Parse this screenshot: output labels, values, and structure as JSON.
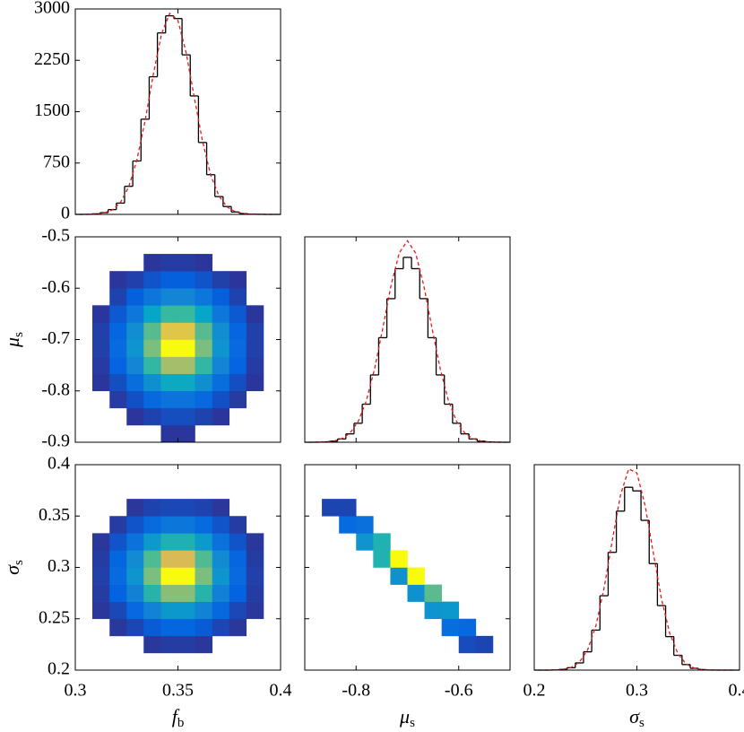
{
  "chart_data": [
    {
      "type": "histogram",
      "color": "#000000",
      "fit_color": "#e41a1c",
      "bins": [
        0.3,
        0.304,
        0.308,
        0.312,
        0.316,
        0.32,
        0.324,
        0.328,
        0.332,
        0.336,
        0.34,
        0.344,
        0.348,
        0.352,
        0.356,
        0.36,
        0.364,
        0.368,
        0.372,
        0.376,
        0.38,
        0.384,
        0.388,
        0.392,
        0.396,
        0.4
      ],
      "values": [
        0,
        1,
        8,
        25,
        70,
        165,
        410,
        780,
        1390,
        2010,
        2650,
        2900,
        2860,
        2330,
        1730,
        1050,
        580,
        260,
        115,
        35,
        12,
        3,
        1,
        0,
        0
      ],
      "fit": [
        0,
        1,
        6,
        21,
        65,
        174,
        400,
        796,
        1366,
        2044,
        2635,
        2937,
        2832,
        2362,
        1704,
        1064,
        571,
        268,
        108,
        38,
        11,
        3,
        1,
        0,
        0
      ],
      "xlim": [
        0.3,
        0.4
      ],
      "ylim": [
        0,
        3000
      ],
      "xticks": [
        0.3,
        0.35,
        0.4
      ],
      "yticks": [
        0,
        750,
        1500,
        2250,
        3000
      ],
      "xticklabels": false,
      "yticklabels": true
    },
    {
      "type": "heatmap",
      "xbins": [
        0.3,
        0.3083,
        0.3167,
        0.325,
        0.3333,
        0.3417,
        0.35,
        0.3583,
        0.3667,
        0.375,
        0.3833,
        0.3917,
        0.4
      ],
      "ybins": [
        -0.9,
        -0.8667,
        -0.8333,
        -0.8,
        -0.7667,
        -0.7333,
        -0.7,
        -0.6667,
        -0.6333,
        -0.6,
        -0.5667,
        -0.5333,
        -0.5
      ],
      "counts": [
        [
          0,
          0,
          0,
          0,
          0,
          1,
          1,
          0,
          0,
          0,
          0,
          0
        ],
        [
          0,
          0,
          0,
          1,
          4,
          8,
          8,
          4,
          1,
          0,
          0,
          0
        ],
        [
          0,
          0,
          2,
          10,
          33,
          56,
          56,
          33,
          10,
          2,
          0,
          0
        ],
        [
          0,
          1,
          9,
          43,
          145,
          248,
          248,
          145,
          43,
          9,
          1,
          0
        ],
        [
          0,
          2,
          23,
          110,
          367,
          631,
          631,
          367,
          110,
          23,
          2,
          0
        ],
        [
          0,
          3,
          34,
          162,
          540,
          927,
          927,
          540,
          162,
          34,
          3,
          0
        ],
        [
          0,
          3,
          28,
          137,
          456,
          782,
          782,
          456,
          137,
          28,
          3,
          0
        ],
        [
          0,
          1,
          14,
          68,
          225,
          387,
          387,
          225,
          68,
          14,
          1,
          0
        ],
        [
          0,
          0,
          4,
          19,
          64,
          110,
          110,
          64,
          19,
          4,
          0,
          0
        ],
        [
          0,
          0,
          1,
          3,
          11,
          19,
          19,
          11,
          3,
          1,
          0,
          0
        ],
        [
          0,
          0,
          0,
          0,
          1,
          2,
          2,
          1,
          0,
          0,
          0,
          0
        ],
        [
          0,
          0,
          0,
          0,
          0,
          0,
          0,
          0,
          0,
          0,
          0,
          0
        ]
      ],
      "xlim": [
        0.3,
        0.4
      ],
      "ylim": [
        -0.9,
        -0.5
      ],
      "xticks": [
        0.3,
        0.35,
        0.4
      ],
      "yticks": [
        -0.9,
        -0.8,
        -0.7,
        -0.6,
        -0.5
      ],
      "xticklabels": false,
      "yticklabels": true,
      "ylabel": [
        "μ",
        "s"
      ]
    },
    {
      "type": "histogram",
      "color": "#000000",
      "fit_color": "#e41a1c",
      "bins": [
        -0.9,
        -0.884,
        -0.868,
        -0.852,
        -0.836,
        -0.82,
        -0.804,
        -0.788,
        -0.772,
        -0.756,
        -0.74,
        -0.724,
        -0.708,
        -0.692,
        -0.676,
        -0.66,
        -0.644,
        -0.628,
        -0.612,
        -0.596,
        -0.58,
        -0.564,
        -0.548,
        -0.532,
        -0.516,
        -0.5
      ],
      "values": [
        0,
        1,
        5,
        16,
        48,
        122,
        277,
        556,
        983,
        1527,
        2097,
        2535,
        2700,
        2535,
        2097,
        1527,
        983,
        556,
        277,
        122,
        48,
        16,
        5,
        1,
        0
      ],
      "fit": [
        0,
        1,
        5,
        17,
        52,
        133,
        302,
        606,
        1071,
        1664,
        2286,
        2763,
        2943,
        2763,
        2286,
        1664,
        1071,
        606,
        302,
        133,
        52,
        17,
        5,
        1,
        0
      ],
      "xlim": [
        -0.9,
        -0.5
      ],
      "ylim": [
        0,
        3000
      ],
      "xticks": [
        -0.8,
        -0.6
      ],
      "yticks": [],
      "xticklabels": false,
      "yticklabels": false
    },
    {
      "type": "heatmap",
      "xbins": [
        0.3,
        0.3083,
        0.3167,
        0.325,
        0.3333,
        0.3417,
        0.35,
        0.3583,
        0.3667,
        0.375,
        0.3833,
        0.3917,
        0.4
      ],
      "ybins": [
        0.2,
        0.2167,
        0.2333,
        0.25,
        0.2667,
        0.2833,
        0.3,
        0.3167,
        0.3333,
        0.35,
        0.3667,
        0.3833,
        0.4
      ],
      "counts": [
        [
          0,
          0,
          0,
          0,
          0,
          0,
          0,
          0,
          0,
          0,
          0,
          0
        ],
        [
          0,
          0,
          0,
          0,
          1,
          2,
          2,
          1,
          0,
          0,
          0,
          0
        ],
        [
          0,
          0,
          1,
          5,
          16,
          27,
          27,
          16,
          5,
          1,
          0,
          0
        ],
        [
          0,
          1,
          6,
          31,
          102,
          175,
          175,
          102,
          31,
          6,
          1,
          0
        ],
        [
          0,
          2,
          21,
          100,
          331,
          569,
          569,
          331,
          100,
          21,
          2,
          0
        ],
        [
          0,
          3,
          34,
          162,
          538,
          924,
          924,
          538,
          162,
          34,
          3,
          0
        ],
        [
          0,
          2,
          27,
          131,
          437,
          750,
          750,
          437,
          131,
          27,
          2,
          0
        ],
        [
          0,
          1,
          11,
          53,
          177,
          305,
          305,
          177,
          53,
          11,
          1,
          0
        ],
        [
          0,
          0,
          2,
          11,
          36,
          62,
          62,
          36,
          11,
          2,
          0,
          0
        ],
        [
          0,
          0,
          0,
          1,
          4,
          6,
          6,
          4,
          1,
          0,
          0,
          0
        ],
        [
          0,
          0,
          0,
          0,
          0,
          0,
          0,
          0,
          0,
          0,
          0,
          0
        ],
        [
          0,
          0,
          0,
          0,
          0,
          0,
          0,
          0,
          0,
          0,
          0,
          0
        ]
      ],
      "xlim": [
        0.3,
        0.4
      ],
      "ylim": [
        0.2,
        0.4
      ],
      "xticks": [
        0.3,
        0.35,
        0.4
      ],
      "yticks": [
        0.2,
        0.25,
        0.3,
        0.35,
        0.4
      ],
      "xticklabels": true,
      "yticklabels": true,
      "xlabel": [
        "f",
        "b"
      ],
      "ylabel": [
        "σ",
        "s"
      ]
    },
    {
      "type": "heatmap",
      "xbins": [
        -0.9,
        -0.8667,
        -0.8333,
        -0.8,
        -0.7667,
        -0.7333,
        -0.7,
        -0.6667,
        -0.6333,
        -0.6,
        -0.5667,
        -0.5333,
        -0.5
      ],
      "ybins": [
        0.2,
        0.2167,
        0.2333,
        0.25,
        0.2667,
        0.2833,
        0.3,
        0.3167,
        0.3333,
        0.35,
        0.3667,
        0.3833,
        0.4
      ],
      "counts": [
        [
          0,
          0,
          0,
          0,
          0,
          0,
          0,
          0,
          0,
          0,
          0,
          0
        ],
        [
          0,
          0,
          0,
          0,
          0,
          0,
          0,
          0,
          0,
          6,
          4,
          0
        ],
        [
          0,
          0,
          0,
          0,
          0,
          0,
          0,
          0,
          34,
          28,
          0,
          0
        ],
        [
          0,
          0,
          0,
          0,
          0,
          0,
          0,
          140,
          150,
          0,
          0,
          0
        ],
        [
          0,
          0,
          0,
          0,
          0,
          0,
          130,
          400,
          0,
          0,
          0,
          0
        ],
        [
          0,
          0,
          0,
          0,
          0,
          130,
          800,
          0,
          0,
          0,
          0,
          0
        ],
        [
          0,
          0,
          0,
          0,
          270,
          800,
          0,
          0,
          0,
          0,
          0,
          0
        ],
        [
          0,
          0,
          0,
          140,
          270,
          0,
          0,
          0,
          0,
          0,
          0,
          0
        ],
        [
          0,
          0,
          30,
          44,
          0,
          0,
          0,
          0,
          0,
          0,
          0,
          0
        ],
        [
          0,
          4,
          4,
          0,
          0,
          0,
          0,
          0,
          0,
          0,
          0,
          0
        ],
        [
          0,
          0,
          0,
          0,
          0,
          0,
          0,
          0,
          0,
          0,
          0,
          0
        ],
        [
          0,
          0,
          0,
          0,
          0,
          0,
          0,
          0,
          0,
          0,
          0,
          0
        ]
      ],
      "xlim": [
        -0.9,
        -0.5
      ],
      "ylim": [
        0.2,
        0.4
      ],
      "xticks": [
        -0.8,
        -0.6
      ],
      "yticks": [
        0.2,
        0.25,
        0.3,
        0.35,
        0.4
      ],
      "xticklabels": true,
      "yticklabels": false,
      "xlabel": [
        "μ",
        "s"
      ]
    },
    {
      "type": "histogram",
      "color": "#000000",
      "fit_color": "#e41a1c",
      "bins": [
        0.2,
        0.208,
        0.216,
        0.224,
        0.232,
        0.24,
        0.248,
        0.256,
        0.264,
        0.272,
        0.28,
        0.288,
        0.296,
        0.304,
        0.312,
        0.32,
        0.328,
        0.336,
        0.344,
        0.352,
        0.36,
        0.368,
        0.376,
        0.384,
        0.392,
        0.4
      ],
      "values": [
        0,
        0,
        2,
        10,
        35,
        105,
        267,
        584,
        1086,
        1720,
        2322,
        2670,
        2617,
        2187,
        1555,
        942,
        489,
        216,
        81,
        26,
        7,
        1,
        0,
        0,
        0
      ],
      "fit": [
        0,
        0,
        2,
        11,
        39,
        116,
        294,
        642,
        1195,
        1892,
        2554,
        2937,
        2879,
        2406,
        1711,
        1036,
        538,
        238,
        89,
        29,
        8,
        1,
        0,
        0,
        0
      ],
      "xlim": [
        0.2,
        0.4
      ],
      "ylim": [
        0,
        3000
      ],
      "xticks": [
        0.2,
        0.3,
        0.4
      ],
      "yticks": [],
      "xticklabels": true,
      "yticklabels": false,
      "xlabel": [
        "σ",
        "s"
      ]
    }
  ]
}
